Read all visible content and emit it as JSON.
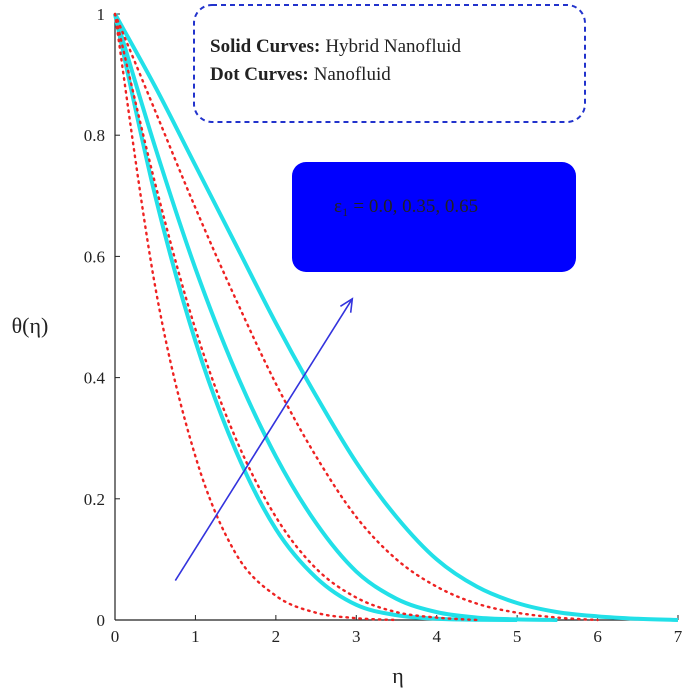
{
  "chart_data": {
    "type": "line",
    "xlabel": "η",
    "ylabel": "θ(η)",
    "xlim": [
      0,
      7
    ],
    "ylim": [
      0,
      1
    ],
    "x_ticks": [
      "0",
      "1",
      "2",
      "3",
      "4",
      "5",
      "6",
      "7"
    ],
    "y_ticks": [
      "0",
      "0.2",
      "0.4",
      "0.6",
      "0.8",
      "1"
    ],
    "legend": {
      "solid_label": "Solid Curves:",
      "solid_text": "Hybrid Nanofluid",
      "dot_label": "Dot Curves:",
      "dot_text": "Nanofluid",
      "position": "top-center"
    },
    "annotation": {
      "text": "ε₁ = 0.0, 0.35, 0.65",
      "box_color": "#0000ff",
      "arrow": "increasing"
    },
    "colors": {
      "solid": "#22e0e8",
      "dotted": "#ee2222",
      "arrow": "#3333dd",
      "legend_border": "#2233cc"
    },
    "series": [
      {
        "style": "solid",
        "x": [
          0,
          0.5,
          1,
          1.5,
          2,
          2.5,
          3,
          3.5,
          4,
          4.5,
          5
        ],
        "y": [
          1,
          0.7,
          0.46,
          0.28,
          0.15,
          0.07,
          0.025,
          0.008,
          0.002,
          0.0005,
          0
        ]
      },
      {
        "style": "solid",
        "x": [
          0,
          0.5,
          1,
          1.5,
          2,
          2.5,
          3,
          3.5,
          4,
          4.5,
          5,
          5.5
        ],
        "y": [
          1,
          0.78,
          0.58,
          0.41,
          0.27,
          0.16,
          0.08,
          0.035,
          0.013,
          0.004,
          0.001,
          0
        ]
      },
      {
        "style": "solid",
        "x": [
          0,
          0.5,
          1,
          1.5,
          2,
          2.5,
          3,
          3.5,
          4,
          4.5,
          5,
          5.5,
          6,
          6.5,
          7
        ],
        "y": [
          1,
          0.88,
          0.75,
          0.62,
          0.49,
          0.37,
          0.26,
          0.17,
          0.1,
          0.055,
          0.028,
          0.013,
          0.006,
          0.002,
          0
        ]
      },
      {
        "style": "dotted",
        "x": [
          0,
          0.5,
          1,
          1.5,
          2,
          2.5,
          3,
          3.5
        ],
        "y": [
          1,
          0.55,
          0.27,
          0.11,
          0.04,
          0.012,
          0.003,
          0
        ]
      },
      {
        "style": "dotted",
        "x": [
          0,
          0.5,
          1,
          1.5,
          2,
          2.5,
          3,
          3.5,
          4,
          4.5
        ],
        "y": [
          1,
          0.72,
          0.48,
          0.3,
          0.17,
          0.085,
          0.037,
          0.013,
          0.004,
          0
        ]
      },
      {
        "style": "dotted",
        "x": [
          0,
          0.5,
          1,
          1.5,
          2,
          2.5,
          3,
          3.5,
          4,
          4.5,
          5,
          5.5,
          6
        ],
        "y": [
          1,
          0.84,
          0.68,
          0.53,
          0.39,
          0.27,
          0.17,
          0.1,
          0.055,
          0.027,
          0.012,
          0.004,
          0
        ]
      }
    ],
    "arrow_from": [
      0.75,
      0.065
    ],
    "arrow_to": [
      2.95,
      0.53
    ]
  }
}
